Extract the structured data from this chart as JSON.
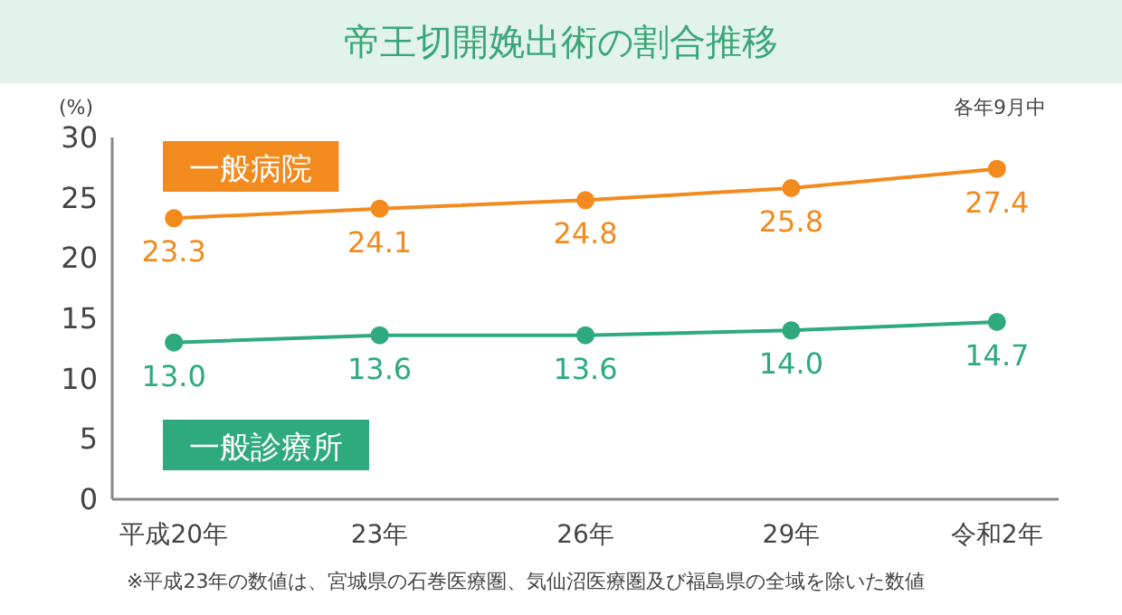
{
  "chart_data": {
    "type": "line",
    "title": "帝王切開娩出術の割合推移",
    "ylabel": "(%)",
    "subtitle": "各年9月中",
    "categories": [
      "平成20年",
      "23年",
      "26年",
      "29年",
      "令和2年"
    ],
    "series": [
      {
        "name": "一般病院",
        "color": "#f28a1e",
        "values": [
          23.3,
          24.1,
          24.8,
          25.8,
          27.4
        ],
        "value_labels": [
          "23.3",
          "24.1",
          "24.8",
          "25.8",
          "27.4"
        ]
      },
      {
        "name": "一般診療所",
        "color": "#2eaa7e",
        "values": [
          13.0,
          13.6,
          13.6,
          14.0,
          14.7
        ],
        "value_labels": [
          "13.0",
          "13.6",
          "13.6",
          "14.0",
          "14.7"
        ]
      }
    ],
    "ylim": [
      0,
      30
    ],
    "yticks": [
      0,
      5,
      10,
      15,
      20,
      25,
      30
    ],
    "marker": "circle",
    "line_style": "solid",
    "grid": false,
    "annotations": [
      "※平成23年の数値は、宮城県の石巻医療圏、気仙沼医療圏及び福島県の全域を除いた数値"
    ]
  }
}
